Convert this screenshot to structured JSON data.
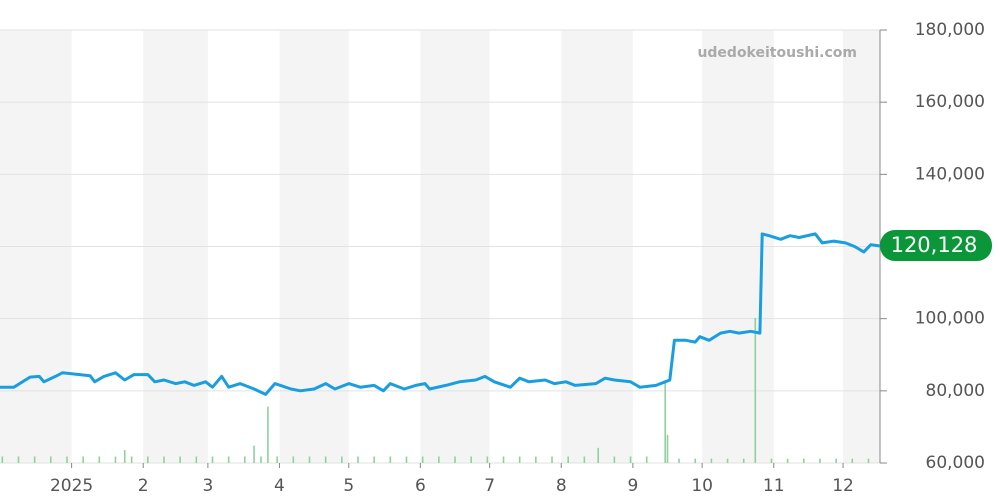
{
  "chart_data": {
    "type": "line",
    "watermark": "udedokeitoushi.com",
    "xlim": [
      0,
      381
    ],
    "xticks": [
      {
        "value": 31,
        "label": "2025"
      },
      {
        "value": 62,
        "label": "2"
      },
      {
        "value": 90,
        "label": "3"
      },
      {
        "value": 121,
        "label": "4"
      },
      {
        "value": 151,
        "label": "5"
      },
      {
        "value": 182,
        "label": "6"
      },
      {
        "value": 212,
        "label": "7"
      },
      {
        "value": 243,
        "label": "8"
      },
      {
        "value": 274,
        "label": "9"
      },
      {
        "value": 304,
        "label": "10"
      },
      {
        "value": 335,
        "label": "11"
      },
      {
        "value": 365,
        "label": "12"
      }
    ],
    "ylim": [
      60000,
      180000
    ],
    "yticks": [
      {
        "value": 60000,
        "label": "60,000"
      },
      {
        "value": 80000,
        "label": "80,000"
      },
      {
        "value": 100000,
        "label": "100,000"
      },
      {
        "value": 120000,
        "label": "120,000"
      },
      {
        "value": 140000,
        "label": "140,000"
      },
      {
        "value": 160000,
        "label": "160,000"
      },
      {
        "value": 180000,
        "label": "180,000"
      }
    ],
    "y2lim": [
      0,
      100
    ],
    "grid": true,
    "last_value_label": "120,128",
    "series": [
      {
        "color": "#1a9ee0",
        "x": [
          0,
          6,
          13,
          17,
          19,
          24,
          27,
          39,
          41,
          45,
          50,
          54,
          58,
          64,
          67,
          71,
          76,
          80,
          84,
          89,
          92,
          96,
          99,
          104,
          110,
          115,
          119,
          126,
          130,
          136,
          141,
          145,
          151,
          156,
          162,
          166,
          169,
          175,
          180,
          184,
          186,
          193,
          199,
          206,
          210,
          214,
          221,
          225,
          229,
          236,
          240,
          245,
          249,
          258,
          262,
          266,
          273,
          277,
          284,
          288,
          290,
          292,
          297,
          301,
          303,
          307,
          312,
          316,
          320,
          325,
          329,
          330,
          333,
          338,
          342,
          346,
          353,
          356,
          361,
          366,
          370,
          374,
          377,
          381
        ],
        "values": [
          81000,
          81000,
          83800,
          84000,
          82500,
          84000,
          85000,
          84200,
          82500,
          84000,
          85000,
          83000,
          84500,
          84500,
          82500,
          83000,
          82000,
          82500,
          81500,
          82500,
          81000,
          84000,
          81000,
          82000,
          80500,
          79000,
          82000,
          80500,
          80000,
          80500,
          82000,
          80500,
          82000,
          81000,
          81500,
          80000,
          82000,
          80500,
          81500,
          82000,
          80500,
          81500,
          82500,
          83000,
          84000,
          82500,
          81000,
          83500,
          82500,
          83000,
          82000,
          82500,
          81500,
          82000,
          83500,
          83000,
          82500,
          81000,
          81500,
          82500,
          83000,
          94000,
          94000,
          93500,
          95000,
          94000,
          96000,
          96500,
          96000,
          96500,
          96000,
          123500,
          123000,
          122000,
          123000,
          122500,
          123500,
          121000,
          121500,
          121000,
          120000,
          118500,
          120500,
          120128
        ]
      },
      {
        "type": "bar",
        "axis": "y2",
        "color": "#8fd19e",
        "x": [
          1,
          8,
          15,
          22,
          29,
          36,
          43,
          50,
          57,
          64,
          71,
          78,
          85,
          92,
          99,
          106,
          113,
          120,
          127,
          134,
          141,
          148,
          155,
          162,
          169,
          176,
          183,
          190,
          197,
          204,
          211,
          218,
          225,
          232,
          239,
          246,
          253,
          266,
          273,
          280,
          294,
          301,
          308,
          315,
          322,
          334,
          341,
          348,
          355,
          362,
          369,
          376,
          116,
          110,
          288,
          289,
          327,
          259,
          54
        ],
        "values": [
          1.5,
          1.5,
          1.5,
          1.5,
          1.5,
          1.5,
          1.5,
          1.5,
          1.5,
          1.5,
          1.5,
          1.5,
          1.5,
          1.5,
          1.5,
          1.5,
          1.5,
          1.5,
          1.5,
          1.5,
          1.5,
          1.5,
          1.5,
          1.5,
          1.5,
          1.5,
          1.5,
          1.5,
          1.5,
          1.5,
          1.5,
          1.5,
          1.5,
          1.5,
          1.5,
          1.5,
          1.5,
          1.5,
          1.5,
          1.5,
          1,
          1,
          1,
          1,
          1,
          1,
          1,
          1,
          1,
          1,
          1,
          1,
          13,
          4,
          18.5,
          6.5,
          33.5,
          3.5,
          3
        ]
      }
    ]
  }
}
